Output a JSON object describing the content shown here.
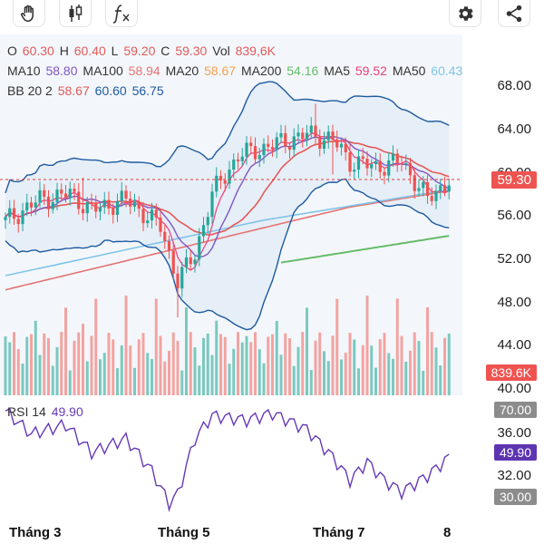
{
  "toolbar": {
    "left_tools": [
      {
        "icon": "hand-pan-icon"
      },
      {
        "icon": "candlestick-icon"
      },
      {
        "icon": "function-fx-icon"
      }
    ],
    "right_tools": [
      {
        "icon": "gear-icon"
      },
      {
        "icon": "share-icon"
      }
    ]
  },
  "ohlc": {
    "o_label": "O",
    "o_value": "60.30",
    "h_label": "H",
    "h_value": "60.40",
    "l_label": "L",
    "l_value": "59.20",
    "c_label": "C",
    "c_value": "59.30",
    "vol_label": "Vol",
    "vol_value": "839,6K"
  },
  "ma": {
    "ma10_label": "MA10",
    "ma10_value": "58.80",
    "ma100_label": "MA100",
    "ma100_value": "58.94",
    "ma20_label": "MA20",
    "ma20_value": "58.67",
    "ma200_label": "MA200",
    "ma200_value": "54.16",
    "ma5_label": "MA5",
    "ma5_value": "59.52",
    "ma50_label": "MA50",
    "ma50_value": "60.43"
  },
  "bb": {
    "label": "BB 20 2",
    "v1": "58.67",
    "v2": "60.60",
    "v3": "56.75"
  },
  "rsi": {
    "label": "RSI 14",
    "value": "49.90"
  },
  "price_axis": [
    "68.00",
    "64.00",
    "60.00",
    "56.00",
    "52.00",
    "48.00",
    "44.00",
    "40.00"
  ],
  "price_tag": "59.30",
  "volume_tag": "839.6K",
  "rsi_axis": [
    "70.00",
    "36.00",
    "32.00",
    "30.00"
  ],
  "rsi_tag": "49.90",
  "months": [
    "Tháng 3",
    "Tháng 5",
    "Tháng 7",
    "8"
  ],
  "colors": {
    "up": "#26a69a",
    "down": "#ef5350",
    "ma10": "#7e57c2",
    "ma100": "#e57373",
    "ma20": "#f5a04c",
    "ma200": "#66bb6a",
    "ma5": "#ec407a",
    "ma50": "#81c4e8",
    "bb": "#1e5aa0",
    "rsi": "#673ab7"
  }
}
